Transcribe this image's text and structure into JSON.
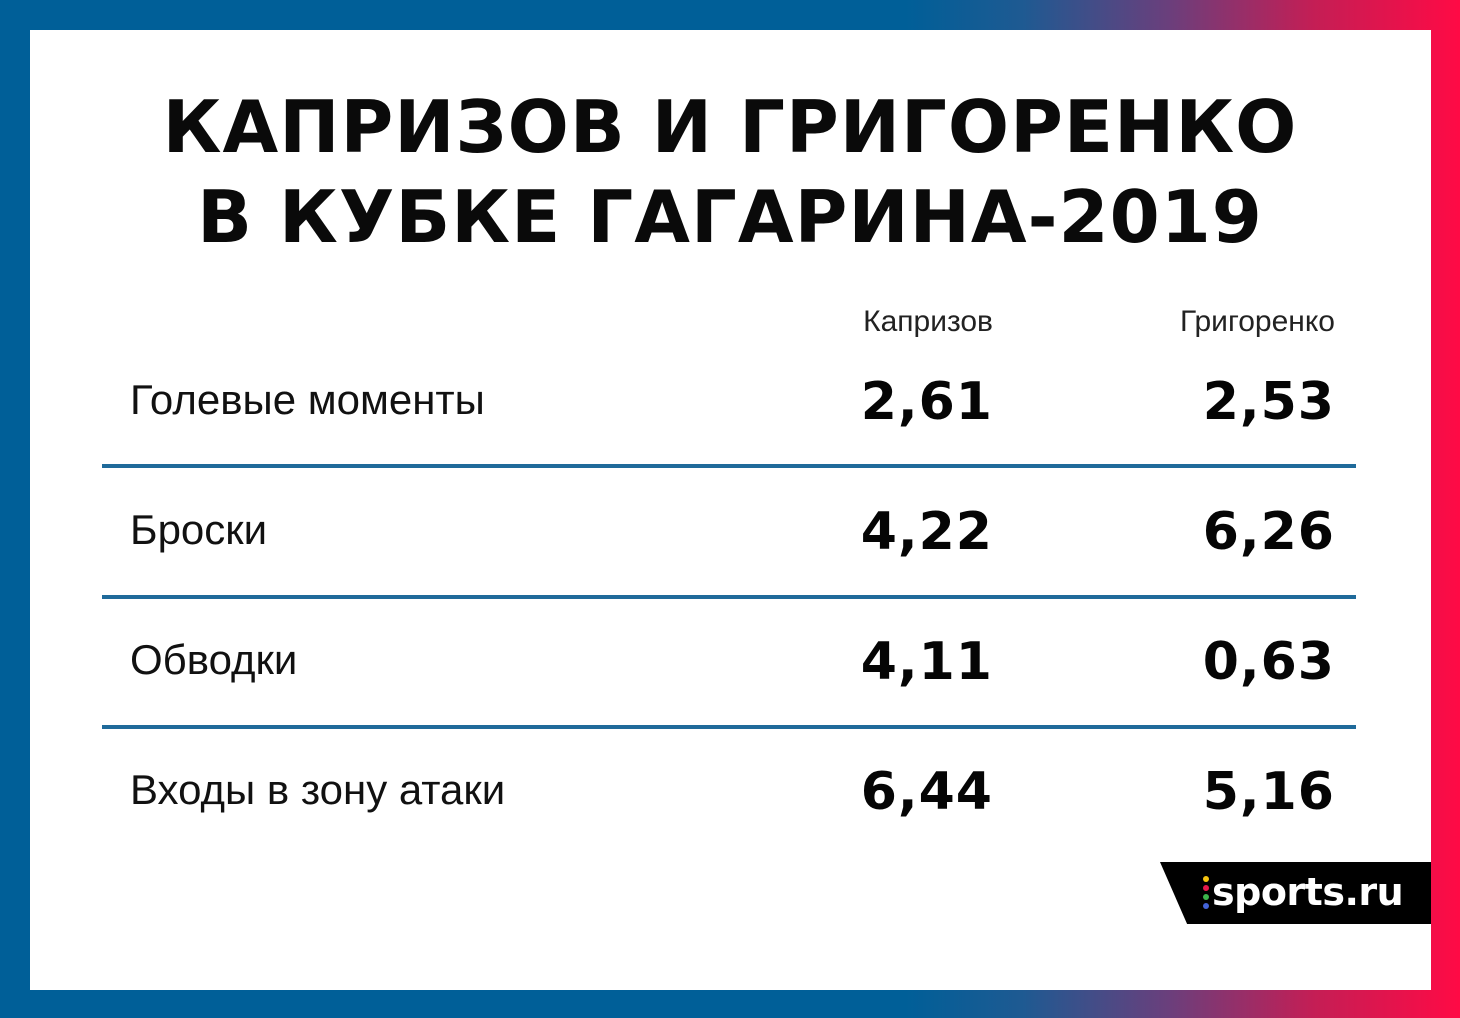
{
  "title": {
    "line1": "КАПРИЗОВ И ГРИГОРЕНКО",
    "line2": "В КУБКЕ ГАГАРИНА-2019"
  },
  "columns": {
    "a": "Капризов",
    "b": "Григоренко"
  },
  "rows": [
    {
      "label": "Голевые моменты",
      "a": "2,61",
      "b": "2,53"
    },
    {
      "label": "Броски",
      "a": "4,22",
      "b": "6,26"
    },
    {
      "label": "Обводки",
      "a": "4,11",
      "b": "0,63"
    },
    {
      "label": "Входы в зону атаки",
      "a": "6,44",
      "b": "5,16"
    }
  ],
  "logo": {
    "text": "sports.ru",
    "dot_colors": [
      "#f6c40f",
      "#e6194b",
      "#3cb44b",
      "#4363d8"
    ]
  },
  "colors": {
    "frame_left": "#005f98",
    "frame_right": "#ff0a45",
    "divider": "#1f6a9a"
  }
}
